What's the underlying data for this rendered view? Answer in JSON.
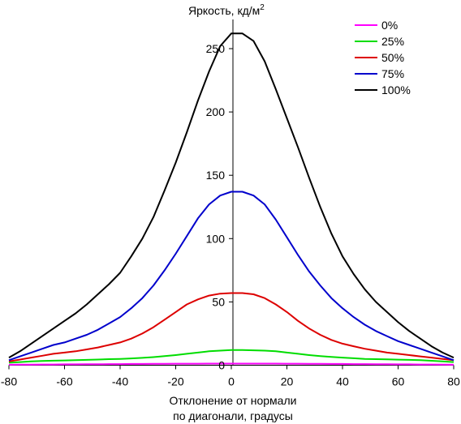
{
  "chart_data": {
    "type": "line",
    "ylabel": "Яркость, кд/м",
    "ylabel_sup": "2",
    "xlabel_lines": [
      "Отклонение от нормали",
      "по диагонали, градусы"
    ],
    "xlim": [
      -80,
      80
    ],
    "ylim": [
      0,
      270
    ],
    "x_ticks": [
      -80,
      -60,
      -40,
      -20,
      0,
      20,
      40,
      60,
      80
    ],
    "y_ticks": [
      0,
      50,
      100,
      150,
      200,
      250
    ],
    "grid": false,
    "legend_position": "top-right",
    "x": [
      -80,
      -76,
      -72,
      -68,
      -64,
      -60,
      -56,
      -52,
      -48,
      -44,
      -40,
      -36,
      -32,
      -28,
      -24,
      -20,
      -16,
      -12,
      -8,
      -4,
      0,
      4,
      8,
      12,
      16,
      20,
      24,
      28,
      32,
      36,
      40,
      44,
      48,
      52,
      56,
      60,
      64,
      68,
      72,
      76,
      80
    ],
    "series": [
      {
        "name": "0%",
        "color": "#ff00ff",
        "values": [
          0.4,
          0.5,
          0.5,
          0.6,
          0.6,
          0.7,
          0.7,
          0.8,
          0.8,
          0.9,
          0.9,
          1.0,
          1.0,
          1.1,
          1.1,
          1.2,
          1.2,
          1.2,
          1.3,
          1.3,
          1.3,
          1.3,
          1.3,
          1.3,
          1.3,
          1.2,
          1.2,
          1.1,
          1.1,
          1.0,
          1.0,
          0.9,
          0.9,
          0.8,
          0.8,
          0.7,
          0.7,
          0.6,
          0.6,
          0.5,
          0.4
        ]
      },
      {
        "name": "25%",
        "color": "#00dd00",
        "values": [
          2,
          2.5,
          3,
          3.3,
          3.6,
          3.8,
          4,
          4.2,
          4.5,
          4.8,
          5,
          5.4,
          5.8,
          6.4,
          7.2,
          8,
          9,
          10,
          11,
          11.5,
          12,
          12,
          11.8,
          11.5,
          11,
          10,
          9,
          8,
          7.2,
          6.5,
          6,
          5.5,
          5,
          4.8,
          4.6,
          4.4,
          4.2,
          4,
          3.5,
          3,
          2.5
        ]
      },
      {
        "name": "50%",
        "color": "#dd0000",
        "values": [
          3,
          4.5,
          6,
          7.5,
          9,
          10,
          11,
          12.5,
          14,
          16,
          18,
          21,
          25,
          30,
          36,
          42,
          48,
          52,
          55,
          56.5,
          57,
          57,
          56,
          53,
          48,
          42,
          35,
          29,
          24,
          20,
          17,
          15,
          13,
          11.5,
          10,
          9,
          8,
          7,
          6,
          5,
          4
        ]
      },
      {
        "name": "75%",
        "color": "#0000cc",
        "values": [
          4,
          7,
          10,
          13,
          16,
          18,
          21,
          24,
          28,
          33,
          38,
          45,
          53,
          63,
          75,
          88,
          102,
          116,
          127,
          134,
          137,
          137,
          134,
          127,
          115,
          101,
          87,
          74,
          63,
          53,
          45,
          38,
          32,
          27,
          23,
          19,
          16,
          13,
          10,
          7,
          4
        ]
      },
      {
        "name": "100%",
        "color": "#000000",
        "values": [
          6,
          11,
          17,
          23,
          29,
          35,
          41,
          48,
          56,
          64,
          73,
          86,
          100,
          117,
          138,
          160,
          184,
          209,
          232,
          252,
          262,
          262,
          256,
          240,
          218,
          195,
          172,
          148,
          125,
          104,
          86,
          72,
          60,
          50,
          42,
          34,
          27,
          21,
          15,
          10,
          6
        ]
      }
    ]
  }
}
